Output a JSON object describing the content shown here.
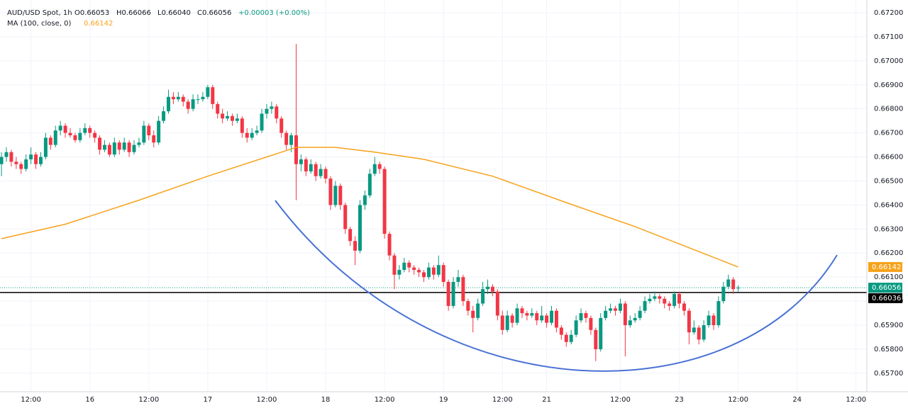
{
  "chart_data": {
    "type": "candlestick",
    "header": {
      "symbol": "AUD/USD Spot, 1h",
      "open": "O0.66053",
      "high": "H0.66066",
      "low": "L0.66040",
      "close": "C0.66056",
      "change": "+0.00003 (+0.00%)",
      "ma_name": "MA (100, close, 0)"
    },
    "up_color": "#089981",
    "down_color": "#f23645",
    "candles": [
      [
        0.6657,
        0.6662,
        0.6652,
        0.666
      ],
      [
        0.666,
        0.6664,
        0.6658,
        0.6662
      ],
      [
        0.6662,
        0.6663,
        0.6656,
        0.6658
      ],
      [
        0.6658,
        0.666,
        0.6655,
        0.6657
      ],
      [
        0.6657,
        0.6658,
        0.6653,
        0.6655
      ],
      [
        0.6655,
        0.6661,
        0.6654,
        0.6659
      ],
      [
        0.6659,
        0.6664,
        0.6657,
        0.6661
      ],
      [
        0.6661,
        0.6662,
        0.6655,
        0.6657
      ],
      [
        0.6657,
        0.6662,
        0.6656,
        0.666
      ],
      [
        0.666,
        0.667,
        0.6659,
        0.6668
      ],
      [
        0.6668,
        0.6669,
        0.6663,
        0.6665
      ],
      [
        0.6665,
        0.6673,
        0.6664,
        0.6671
      ],
      [
        0.6671,
        0.6675,
        0.6669,
        0.6673
      ],
      [
        0.6673,
        0.6674,
        0.6668,
        0.667
      ],
      [
        0.667,
        0.6672,
        0.6668,
        0.6669
      ],
      [
        0.6669,
        0.667,
        0.6666,
        0.6667
      ],
      [
        0.6667,
        0.6672,
        0.6666,
        0.667
      ],
      [
        0.667,
        0.6674,
        0.6669,
        0.6672
      ],
      [
        0.6672,
        0.6673,
        0.6668,
        0.667
      ],
      [
        0.667,
        0.6671,
        0.6666,
        0.6668
      ],
      [
        0.6668,
        0.6669,
        0.6661,
        0.6663
      ],
      [
        0.6663,
        0.6667,
        0.6662,
        0.6665
      ],
      [
        0.6665,
        0.6666,
        0.666,
        0.6661
      ],
      [
        0.6661,
        0.6668,
        0.666,
        0.6666
      ],
      [
        0.6666,
        0.6667,
        0.6661,
        0.6663
      ],
      [
        0.6663,
        0.6668,
        0.6662,
        0.6666
      ],
      [
        0.6666,
        0.6667,
        0.666,
        0.6662
      ],
      [
        0.6662,
        0.6667,
        0.6661,
        0.6665
      ],
      [
        0.6665,
        0.6668,
        0.6664,
        0.6666
      ],
      [
        0.6666,
        0.6675,
        0.6665,
        0.6673
      ],
      [
        0.6673,
        0.6674,
        0.6667,
        0.6669
      ],
      [
        0.6669,
        0.6671,
        0.6664,
        0.6666
      ],
      [
        0.6666,
        0.6677,
        0.6665,
        0.6675
      ],
      [
        0.6675,
        0.6681,
        0.6674,
        0.6679
      ],
      [
        0.6679,
        0.6688,
        0.6678,
        0.6685
      ],
      [
        0.6685,
        0.6687,
        0.6682,
        0.6684
      ],
      [
        0.6684,
        0.6687,
        0.6683,
        0.6685
      ],
      [
        0.6685,
        0.6686,
        0.6681,
        0.6683
      ],
      [
        0.6683,
        0.6684,
        0.6678,
        0.668
      ],
      [
        0.668,
        0.6686,
        0.6679,
        0.6684
      ],
      [
        0.6684,
        0.6686,
        0.6682,
        0.6684
      ],
      [
        0.6684,
        0.6687,
        0.6683,
        0.6685
      ],
      [
        0.6685,
        0.669,
        0.6684,
        0.6689
      ],
      [
        0.6689,
        0.669,
        0.668,
        0.6682
      ],
      [
        0.6682,
        0.6683,
        0.6676,
        0.6678
      ],
      [
        0.6678,
        0.668,
        0.6674,
        0.6676
      ],
      [
        0.6676,
        0.6679,
        0.6675,
        0.6677
      ],
      [
        0.6677,
        0.6678,
        0.6673,
        0.6675
      ],
      [
        0.6675,
        0.6678,
        0.6674,
        0.6676
      ],
      [
        0.6676,
        0.6677,
        0.6668,
        0.667
      ],
      [
        0.667,
        0.6672,
        0.6666,
        0.6668
      ],
      [
        0.6668,
        0.6672,
        0.6667,
        0.667
      ],
      [
        0.667,
        0.6673,
        0.6669,
        0.6671
      ],
      [
        0.6671,
        0.668,
        0.667,
        0.6678
      ],
      [
        0.6678,
        0.6682,
        0.6676,
        0.668
      ],
      [
        0.668,
        0.6683,
        0.6678,
        0.6681
      ],
      [
        0.6681,
        0.6682,
        0.6674,
        0.6676
      ],
      [
        0.6676,
        0.6677,
        0.6668,
        0.667
      ],
      [
        0.667,
        0.6671,
        0.6663,
        0.6665
      ],
      [
        0.6665,
        0.667,
        0.6662,
        0.6669
      ],
      [
        0.6669,
        0.6707,
        0.6642,
        0.6657
      ],
      [
        0.6657,
        0.6661,
        0.6654,
        0.6659
      ],
      [
        0.6659,
        0.666,
        0.6652,
        0.6654
      ],
      [
        0.6654,
        0.6659,
        0.6653,
        0.6657
      ],
      [
        0.6657,
        0.6658,
        0.665,
        0.6652
      ],
      [
        0.6652,
        0.6657,
        0.6651,
        0.6655
      ],
      [
        0.6655,
        0.6656,
        0.6649,
        0.6651
      ],
      [
        0.6651,
        0.6652,
        0.6638,
        0.664
      ],
      [
        0.664,
        0.665,
        0.6639,
        0.6648
      ],
      [
        0.6648,
        0.6649,
        0.6638,
        0.664
      ],
      [
        0.664,
        0.6641,
        0.6628,
        0.663
      ],
      [
        0.663,
        0.6631,
        0.6623,
        0.6625
      ],
      [
        0.6625,
        0.6627,
        0.6615,
        0.6621
      ],
      [
        0.6621,
        0.6642,
        0.662,
        0.664
      ],
      [
        0.664,
        0.6646,
        0.6638,
        0.6644
      ],
      [
        0.6644,
        0.6655,
        0.6643,
        0.6653
      ],
      [
        0.6653,
        0.666,
        0.6652,
        0.6657
      ],
      [
        0.6657,
        0.6658,
        0.6653,
        0.6655
      ],
      [
        0.6655,
        0.6656,
        0.6626,
        0.6628
      ],
      [
        0.6628,
        0.6629,
        0.6617,
        0.6619
      ],
      [
        0.6619,
        0.662,
        0.6605,
        0.6611
      ],
      [
        0.6611,
        0.6615,
        0.6609,
        0.6613
      ],
      [
        0.6613,
        0.6618,
        0.6612,
        0.6616
      ],
      [
        0.6616,
        0.6617,
        0.6612,
        0.6614
      ],
      [
        0.6614,
        0.6615,
        0.6611,
        0.6613
      ],
      [
        0.6613,
        0.6614,
        0.661,
        0.6612
      ],
      [
        0.6612,
        0.6613,
        0.6608,
        0.661
      ],
      [
        0.661,
        0.6616,
        0.6609,
        0.6614
      ],
      [
        0.6614,
        0.6615,
        0.6609,
        0.6611
      ],
      [
        0.6611,
        0.6619,
        0.661,
        0.6615
      ],
      [
        0.6615,
        0.6616,
        0.6606,
        0.6608
      ],
      [
        0.6608,
        0.6609,
        0.6596,
        0.6598
      ],
      [
        0.6598,
        0.661,
        0.6597,
        0.6608
      ],
      [
        0.6608,
        0.6613,
        0.6606,
        0.661
      ],
      [
        0.661,
        0.6611,
        0.6598,
        0.66
      ],
      [
        0.66,
        0.6601,
        0.6594,
        0.6596
      ],
      [
        0.6596,
        0.6598,
        0.6587,
        0.6593
      ],
      [
        0.6593,
        0.6601,
        0.6592,
        0.6599
      ],
      [
        0.6599,
        0.6608,
        0.6598,
        0.6605
      ],
      [
        0.6605,
        0.6609,
        0.6603,
        0.6606
      ],
      [
        0.6606,
        0.6607,
        0.6602,
        0.6604
      ],
      [
        0.6604,
        0.6605,
        0.6592,
        0.6594
      ],
      [
        0.6594,
        0.6596,
        0.6586,
        0.6588
      ],
      [
        0.6588,
        0.6596,
        0.6587,
        0.6594
      ],
      [
        0.6594,
        0.6595,
        0.6589,
        0.6591
      ],
      [
        0.6591,
        0.6599,
        0.659,
        0.6597
      ],
      [
        0.6597,
        0.6598,
        0.6593,
        0.6595
      ],
      [
        0.6595,
        0.6596,
        0.6592,
        0.6594
      ],
      [
        0.6594,
        0.6597,
        0.6593,
        0.6595
      ],
      [
        0.6595,
        0.6596,
        0.659,
        0.6592
      ],
      [
        0.6592,
        0.6598,
        0.6591,
        0.6594
      ],
      [
        0.6594,
        0.6595,
        0.6589,
        0.6591
      ],
      [
        0.6591,
        0.6598,
        0.659,
        0.6596
      ],
      [
        0.6596,
        0.6597,
        0.6587,
        0.6589
      ],
      [
        0.6589,
        0.659,
        0.6584,
        0.6586
      ],
      [
        0.6586,
        0.6587,
        0.6581,
        0.6583
      ],
      [
        0.6583,
        0.6588,
        0.6582,
        0.6586
      ],
      [
        0.6586,
        0.6594,
        0.6585,
        0.6592
      ],
      [
        0.6592,
        0.6597,
        0.6591,
        0.6595
      ],
      [
        0.6595,
        0.6596,
        0.6591,
        0.6593
      ],
      [
        0.6593,
        0.6594,
        0.6586,
        0.6588
      ],
      [
        0.6588,
        0.6589,
        0.6575,
        0.658
      ],
      [
        0.658,
        0.6595,
        0.6579,
        0.6593
      ],
      [
        0.6593,
        0.6598,
        0.6592,
        0.6596
      ],
      [
        0.6596,
        0.6599,
        0.6595,
        0.6597
      ],
      [
        0.6597,
        0.6598,
        0.6594,
        0.6596
      ],
      [
        0.6596,
        0.6601,
        0.6595,
        0.6599
      ],
      [
        0.6599,
        0.66,
        0.6577,
        0.659
      ],
      [
        0.659,
        0.6594,
        0.6589,
        0.6592
      ],
      [
        0.6592,
        0.6595,
        0.6591,
        0.6593
      ],
      [
        0.6593,
        0.6598,
        0.6592,
        0.6596
      ],
      [
        0.6596,
        0.6602,
        0.6595,
        0.66
      ],
      [
        0.66,
        0.6603,
        0.6599,
        0.6601
      ],
      [
        0.6601,
        0.6604,
        0.66,
        0.6602
      ],
      [
        0.6602,
        0.6603,
        0.6599,
        0.6601
      ],
      [
        0.6601,
        0.6602,
        0.6597,
        0.6599
      ],
      [
        0.6599,
        0.66,
        0.6596,
        0.6598
      ],
      [
        0.6598,
        0.6604,
        0.6597,
        0.6603
      ],
      [
        0.6603,
        0.6604,
        0.6597,
        0.6599
      ],
      [
        0.6599,
        0.66,
        0.6594,
        0.6596
      ],
      [
        0.6596,
        0.6597,
        0.6582,
        0.6587
      ],
      [
        0.6587,
        0.6592,
        0.6586,
        0.6589
      ],
      [
        0.6589,
        0.659,
        0.6582,
        0.6584
      ],
      [
        0.6584,
        0.6592,
        0.6583,
        0.659
      ],
      [
        0.659,
        0.6596,
        0.6589,
        0.6594
      ],
      [
        0.6594,
        0.6595,
        0.6588,
        0.659
      ],
      [
        0.659,
        0.6602,
        0.6589,
        0.66
      ],
      [
        0.66,
        0.6608,
        0.6599,
        0.6606
      ],
      [
        0.6606,
        0.6611,
        0.6605,
        0.6609
      ],
      [
        0.6609,
        0.661,
        0.6603,
        0.6605
      ],
      [
        0.66053,
        0.66066,
        0.6604,
        0.66056
      ]
    ],
    "ma": {
      "color": "#f7a21b",
      "x": [
        0,
        13,
        28,
        42,
        57,
        60,
        68,
        76,
        86,
        100,
        115,
        129,
        144,
        150
      ],
      "values": [
        0.6626,
        0.6632,
        0.6642,
        0.6652,
        0.6662,
        0.6664,
        0.6664,
        0.6662,
        0.6659,
        0.6652,
        0.6641,
        0.6631,
        0.6619,
        0.66142
      ]
    },
    "hline": 0.66036,
    "xlim": [
      -0.3,
      176.2
    ],
    "ylim": [
      0.65623,
      0.67253
    ],
    "xticks": [
      {
        "value": 6,
        "label": "12:00"
      },
      {
        "value": 18,
        "label": "16"
      },
      {
        "value": 30,
        "label": "12:00"
      },
      {
        "value": 42,
        "label": "17"
      },
      {
        "value": 54,
        "label": "12:00"
      },
      {
        "value": 66,
        "label": "18"
      },
      {
        "value": 78,
        "label": "12:00"
      },
      {
        "value": 90,
        "label": "19"
      },
      {
        "value": 102,
        "label": "12:00"
      },
      {
        "value": 111,
        "label": "21"
      },
      {
        "value": 126,
        "label": "12:00"
      },
      {
        "value": 138,
        "label": "23"
      },
      {
        "value": 150,
        "label": "12:00"
      },
      {
        "value": 162,
        "label": "24"
      },
      {
        "value": 174,
        "label": "12:00"
      }
    ],
    "yticks": [
      {
        "value": 0.672,
        "label": "0.67200"
      },
      {
        "value": 0.671,
        "label": "0.67100"
      },
      {
        "value": 0.67,
        "label": "0.67000"
      },
      {
        "value": 0.669,
        "label": "0.66900"
      },
      {
        "value": 0.668,
        "label": "0.66800"
      },
      {
        "value": 0.667,
        "label": "0.66700"
      },
      {
        "value": 0.666,
        "label": "0.66600"
      },
      {
        "value": 0.665,
        "label": "0.66500"
      },
      {
        "value": 0.664,
        "label": "0.66400"
      },
      {
        "value": 0.663,
        "label": "0.66300"
      },
      {
        "value": 0.662,
        "label": "0.66200"
      },
      {
        "value": 0.661,
        "label": "0.66100"
      },
      {
        "value": 0.66,
        "label": "0.66000"
      },
      {
        "value": 0.659,
        "label": "0.65900"
      },
      {
        "value": 0.658,
        "label": "0.65800"
      },
      {
        "value": 0.657,
        "label": "0.65700"
      }
    ],
    "grid": true
  }
}
